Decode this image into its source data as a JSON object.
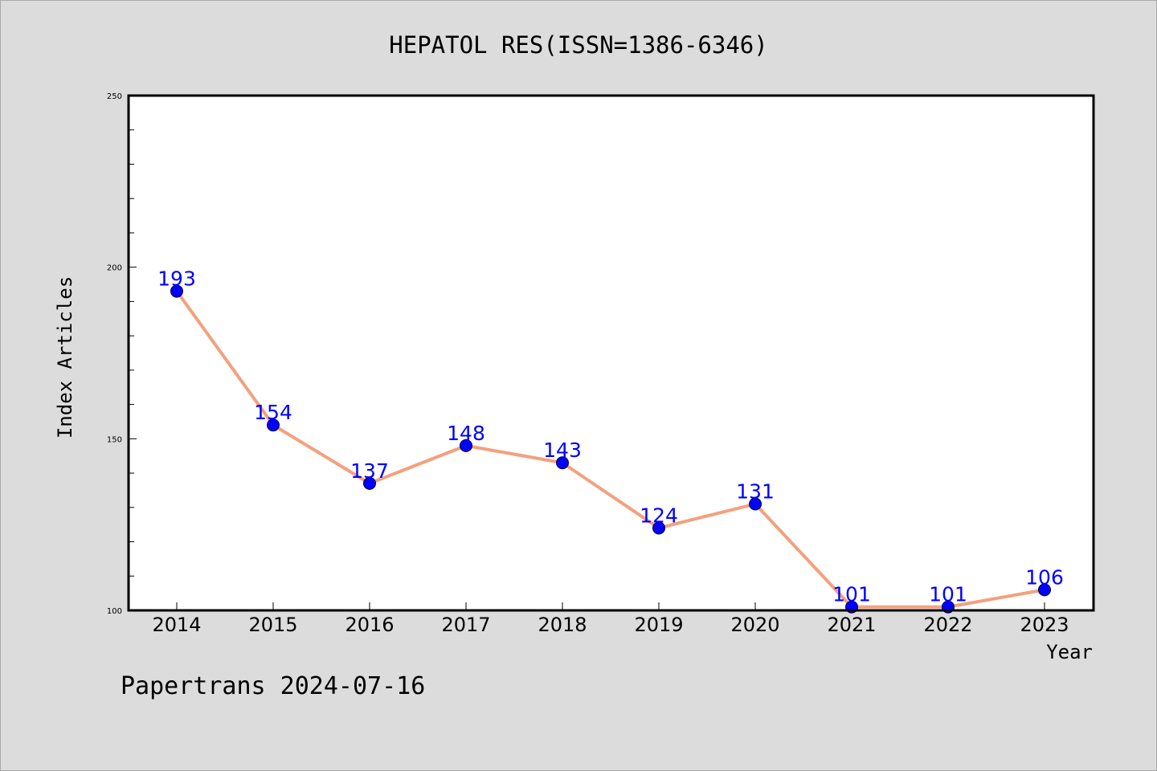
{
  "colors": {
    "background": "#dcdcdc",
    "plot_background": "#ffffff",
    "line": "#f4a07e",
    "marker": "#0000ff",
    "data_label": "#0000ff"
  },
  "chart_data": {
    "type": "line",
    "title": "HEPATOL RES(ISSN=1386-6346)",
    "xlabel": "Year",
    "ylabel": "Index Articles",
    "categories": [
      "2014",
      "2015",
      "2016",
      "2017",
      "2018",
      "2019",
      "2020",
      "2021",
      "2022",
      "2023"
    ],
    "series": [
      {
        "values": [
          193,
          154,
          137,
          148,
          143,
          124,
          131,
          101,
          101,
          106
        ]
      }
    ],
    "ylim": [
      100,
      250
    ],
    "yticks": [
      100,
      150,
      200,
      250
    ],
    "data_labels": true,
    "grid": false,
    "legend": "none"
  },
  "footer": {
    "text": "Papertrans 2024-07-16"
  }
}
